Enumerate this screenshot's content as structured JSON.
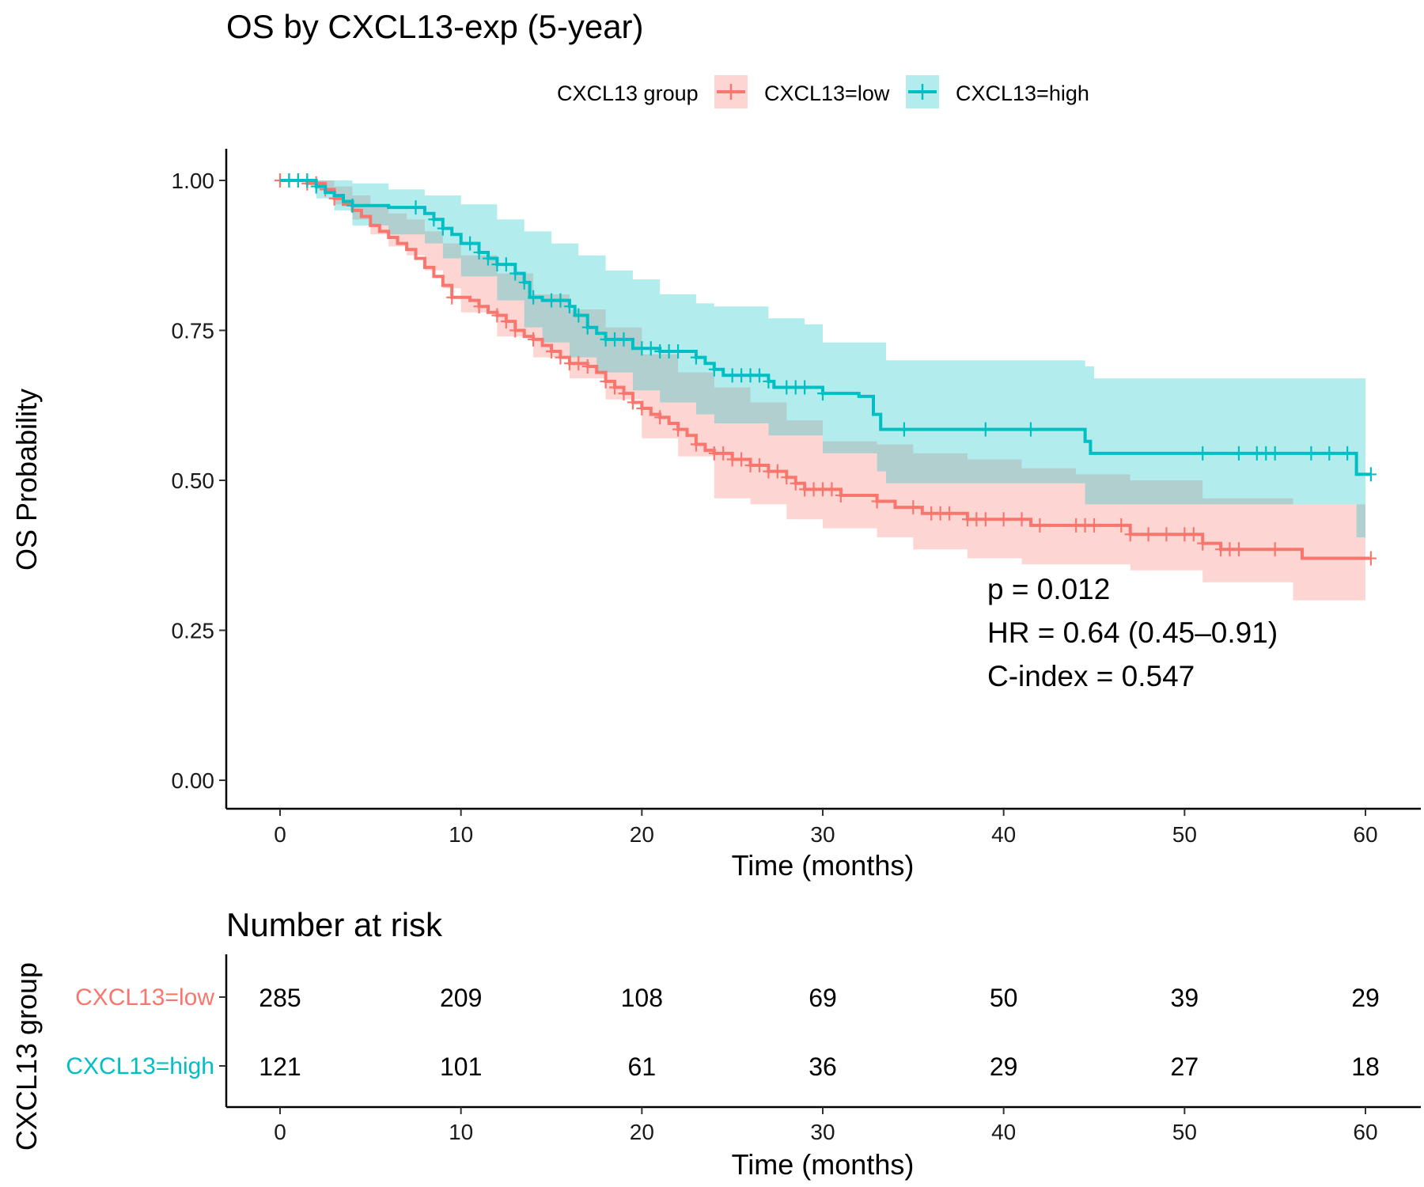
{
  "chart_data": {
    "type": "line",
    "subtype": "kaplan-meier",
    "title": "OS by CXCL13-exp (5-year)",
    "legend": {
      "title": "CXCL13 group",
      "placement": "top",
      "entries": [
        "CXCL13=low",
        "CXCL13=high"
      ]
    },
    "xlabel": "Time (months)",
    "ylabel": "OS Probability",
    "xlim": [
      -3,
      63
    ],
    "ylim": [
      -0.05,
      1.05
    ],
    "x_ticks": [
      0,
      10,
      20,
      30,
      40,
      50,
      60
    ],
    "y_ticks": [
      0,
      0.25,
      0.5,
      0.75,
      1
    ],
    "y_tick_labels": [
      "0.00",
      "0.25",
      "0.50",
      "0.75",
      "1.00"
    ],
    "grid": false,
    "annotations": [
      "p = 0.012",
      "HR = 0.64 (0.45–0.91)",
      "C-index = 0.547"
    ],
    "series": [
      {
        "name": "CXCL13=low",
        "color": "#F8766D",
        "steps": [
          [
            0,
            1.0
          ],
          [
            1.5,
            0.995
          ],
          [
            2.5,
            0.985
          ],
          [
            3.0,
            0.97
          ],
          [
            3.5,
            0.96
          ],
          [
            4.0,
            0.95
          ],
          [
            4.5,
            0.94
          ],
          [
            5.0,
            0.925
          ],
          [
            5.5,
            0.915
          ],
          [
            6.0,
            0.905
          ],
          [
            6.5,
            0.895
          ],
          [
            7.0,
            0.885
          ],
          [
            7.5,
            0.87
          ],
          [
            8.0,
            0.855
          ],
          [
            8.5,
            0.84
          ],
          [
            9.0,
            0.825
          ],
          [
            9.5,
            0.805
          ],
          [
            10.5,
            0.8
          ],
          [
            11.0,
            0.79
          ],
          [
            11.5,
            0.78
          ],
          [
            12.0,
            0.775
          ],
          [
            12.5,
            0.765
          ],
          [
            13.0,
            0.75
          ],
          [
            13.5,
            0.74
          ],
          [
            14.0,
            0.735
          ],
          [
            14.5,
            0.725
          ],
          [
            15.0,
            0.715
          ],
          [
            15.5,
            0.705
          ],
          [
            16.0,
            0.695
          ],
          [
            17.0,
            0.69
          ],
          [
            17.5,
            0.68
          ],
          [
            18.0,
            0.665
          ],
          [
            18.5,
            0.655
          ],
          [
            19.0,
            0.645
          ],
          [
            19.5,
            0.63
          ],
          [
            20.0,
            0.62
          ],
          [
            20.5,
            0.61
          ],
          [
            21.0,
            0.605
          ],
          [
            21.5,
            0.595
          ],
          [
            22.0,
            0.585
          ],
          [
            22.5,
            0.575
          ],
          [
            23.0,
            0.56
          ],
          [
            23.5,
            0.55
          ],
          [
            24.0,
            0.545
          ],
          [
            25.0,
            0.535
          ],
          [
            26.0,
            0.525
          ],
          [
            27.0,
            0.515
          ],
          [
            28.0,
            0.505
          ],
          [
            28.5,
            0.495
          ],
          [
            29.0,
            0.485
          ],
          [
            31.0,
            0.475
          ],
          [
            33.0,
            0.465
          ],
          [
            34.0,
            0.455
          ],
          [
            35.5,
            0.445
          ],
          [
            38.0,
            0.435
          ],
          [
            41.5,
            0.425
          ],
          [
            47.0,
            0.41
          ],
          [
            51.0,
            0.395
          ],
          [
            52.0,
            0.385
          ],
          [
            56.5,
            0.37
          ],
          [
            60.3,
            0.37
          ]
        ],
        "ci_upper": [
          [
            0,
            1.0
          ],
          [
            2,
            1.0
          ],
          [
            3,
            0.99
          ],
          [
            4,
            0.975
          ],
          [
            5,
            0.96
          ],
          [
            6,
            0.945
          ],
          [
            7,
            0.935
          ],
          [
            8,
            0.915
          ],
          [
            9,
            0.895
          ],
          [
            10,
            0.875
          ],
          [
            12,
            0.845
          ],
          [
            14,
            0.81
          ],
          [
            16,
            0.785
          ],
          [
            18,
            0.755
          ],
          [
            20,
            0.71
          ],
          [
            22,
            0.68
          ],
          [
            24,
            0.655
          ],
          [
            26,
            0.63
          ],
          [
            28,
            0.6
          ],
          [
            30,
            0.565
          ],
          [
            33,
            0.56
          ],
          [
            35,
            0.545
          ],
          [
            38,
            0.535
          ],
          [
            41,
            0.52
          ],
          [
            44,
            0.51
          ],
          [
            47,
            0.5
          ],
          [
            51,
            0.47
          ],
          [
            56,
            0.46
          ],
          [
            60,
            0.445
          ]
        ],
        "ci_lower": [
          [
            0,
            1.0
          ],
          [
            2,
            0.985
          ],
          [
            3,
            0.96
          ],
          [
            4,
            0.935
          ],
          [
            5,
            0.91
          ],
          [
            6,
            0.89
          ],
          [
            7,
            0.875
          ],
          [
            8,
            0.85
          ],
          [
            9,
            0.82
          ],
          [
            10,
            0.78
          ],
          [
            12,
            0.74
          ],
          [
            14,
            0.705
          ],
          [
            16,
            0.67
          ],
          [
            18,
            0.635
          ],
          [
            20,
            0.57
          ],
          [
            22,
            0.54
          ],
          [
            24,
            0.47
          ],
          [
            26,
            0.46
          ],
          [
            28,
            0.435
          ],
          [
            30,
            0.42
          ],
          [
            33,
            0.405
          ],
          [
            35,
            0.385
          ],
          [
            38,
            0.37
          ],
          [
            41,
            0.36
          ],
          [
            44,
            0.36
          ],
          [
            47,
            0.35
          ],
          [
            51,
            0.33
          ],
          [
            56,
            0.3
          ],
          [
            60,
            0.3
          ]
        ],
        "censor_times": [
          0,
          0.5,
          1,
          1.5,
          2,
          2.5,
          3,
          9.5,
          11,
          12,
          12.5,
          13,
          14,
          15,
          15.5,
          16,
          16.5,
          17,
          18,
          18.5,
          19,
          19.5,
          20,
          21,
          22,
          23,
          24,
          24.5,
          25,
          25.5,
          26,
          26.5,
          27,
          27.5,
          28,
          28.5,
          29,
          29.5,
          30,
          30.5,
          31,
          33,
          35,
          36,
          36.5,
          37,
          38,
          38.5,
          39,
          40,
          41,
          42,
          44,
          44.5,
          45,
          46.5,
          47,
          48,
          49,
          50,
          50.5,
          51,
          52,
          52.5,
          53,
          55,
          60.3
        ]
      },
      {
        "name": "CXCL13=high",
        "color": "#00BFC4",
        "steps": [
          [
            0,
            1.0
          ],
          [
            2,
            0.99
          ],
          [
            2.5,
            0.98
          ],
          [
            3,
            0.975
          ],
          [
            3.5,
            0.965
          ],
          [
            4,
            0.958
          ],
          [
            6,
            0.955
          ],
          [
            8,
            0.945
          ],
          [
            8.5,
            0.935
          ],
          [
            9,
            0.92
          ],
          [
            9.5,
            0.91
          ],
          [
            10,
            0.895
          ],
          [
            11,
            0.88
          ],
          [
            11.5,
            0.87
          ],
          [
            12,
            0.86
          ],
          [
            13,
            0.845
          ],
          [
            13.5,
            0.83
          ],
          [
            13.8,
            0.805
          ],
          [
            14.5,
            0.8
          ],
          [
            16,
            0.79
          ],
          [
            16.3,
            0.775
          ],
          [
            17,
            0.755
          ],
          [
            17.5,
            0.745
          ],
          [
            18,
            0.735
          ],
          [
            19.5,
            0.72
          ],
          [
            21,
            0.715
          ],
          [
            23,
            0.705
          ],
          [
            23.5,
            0.695
          ],
          [
            24,
            0.685
          ],
          [
            24.5,
            0.675
          ],
          [
            27,
            0.665
          ],
          [
            27.3,
            0.655
          ],
          [
            30,
            0.645
          ],
          [
            32,
            0.64
          ],
          [
            32.8,
            0.61
          ],
          [
            33.2,
            0.585
          ],
          [
            44.5,
            0.565
          ],
          [
            44.8,
            0.545
          ],
          [
            59.5,
            0.51
          ],
          [
            60.3,
            0.51
          ]
        ],
        "ci_upper": [
          [
            0,
            1.0
          ],
          [
            4,
            0.995
          ],
          [
            6,
            0.985
          ],
          [
            8,
            0.975
          ],
          [
            10,
            0.96
          ],
          [
            12,
            0.935
          ],
          [
            13.5,
            0.915
          ],
          [
            15,
            0.895
          ],
          [
            16.5,
            0.875
          ],
          [
            18,
            0.85
          ],
          [
            19.5,
            0.835
          ],
          [
            21,
            0.81
          ],
          [
            23,
            0.795
          ],
          [
            24,
            0.79
          ],
          [
            27,
            0.77
          ],
          [
            29,
            0.76
          ],
          [
            30,
            0.73
          ],
          [
            33,
            0.73
          ],
          [
            33.5,
            0.7
          ],
          [
            44.5,
            0.69
          ],
          [
            45,
            0.67
          ],
          [
            59.5,
            0.67
          ],
          [
            60,
            0.65
          ]
        ],
        "ci_lower": [
          [
            0,
            1.0
          ],
          [
            2,
            0.97
          ],
          [
            3,
            0.95
          ],
          [
            4,
            0.925
          ],
          [
            6,
            0.91
          ],
          [
            8,
            0.895
          ],
          [
            9,
            0.87
          ],
          [
            10,
            0.84
          ],
          [
            12,
            0.8
          ],
          [
            13.5,
            0.755
          ],
          [
            14.5,
            0.73
          ],
          [
            16,
            0.705
          ],
          [
            17.5,
            0.68
          ],
          [
            19.5,
            0.65
          ],
          [
            21,
            0.63
          ],
          [
            23,
            0.61
          ],
          [
            24,
            0.595
          ],
          [
            27,
            0.575
          ],
          [
            30,
            0.545
          ],
          [
            33,
            0.515
          ],
          [
            33.5,
            0.495
          ],
          [
            44.5,
            0.46
          ],
          [
            45,
            0.46
          ],
          [
            59.5,
            0.405
          ],
          [
            60,
            0.405
          ]
        ],
        "censor_times": [
          0.5,
          1,
          1.5,
          2,
          4,
          7.5,
          8.5,
          9,
          10.5,
          11,
          11.5,
          12,
          12.5,
          13,
          13.5,
          14,
          15,
          15.5,
          16,
          16.5,
          17,
          18,
          18.5,
          19,
          20,
          20.5,
          21,
          21.5,
          22,
          23,
          24,
          25,
          25.5,
          26,
          26.5,
          27,
          28,
          28.5,
          29,
          30,
          34.5,
          39,
          41.5,
          51,
          53,
          54,
          54.5,
          55,
          57,
          58,
          59,
          60.3
        ]
      }
    ],
    "risk_table": {
      "title": "Number at risk",
      "ylabel": "CXCL13 group",
      "xlabel": "Time (months)",
      "times": [
        0,
        10,
        20,
        30,
        40,
        50,
        60
      ],
      "rows": [
        {
          "group": "CXCL13=low",
          "color": "#F8766D",
          "counts": [
            285,
            209,
            108,
            69,
            50,
            39,
            29
          ]
        },
        {
          "group": "CXCL13=high",
          "color": "#00BFC4",
          "counts": [
            121,
            101,
            61,
            36,
            29,
            27,
            18
          ]
        }
      ]
    }
  }
}
